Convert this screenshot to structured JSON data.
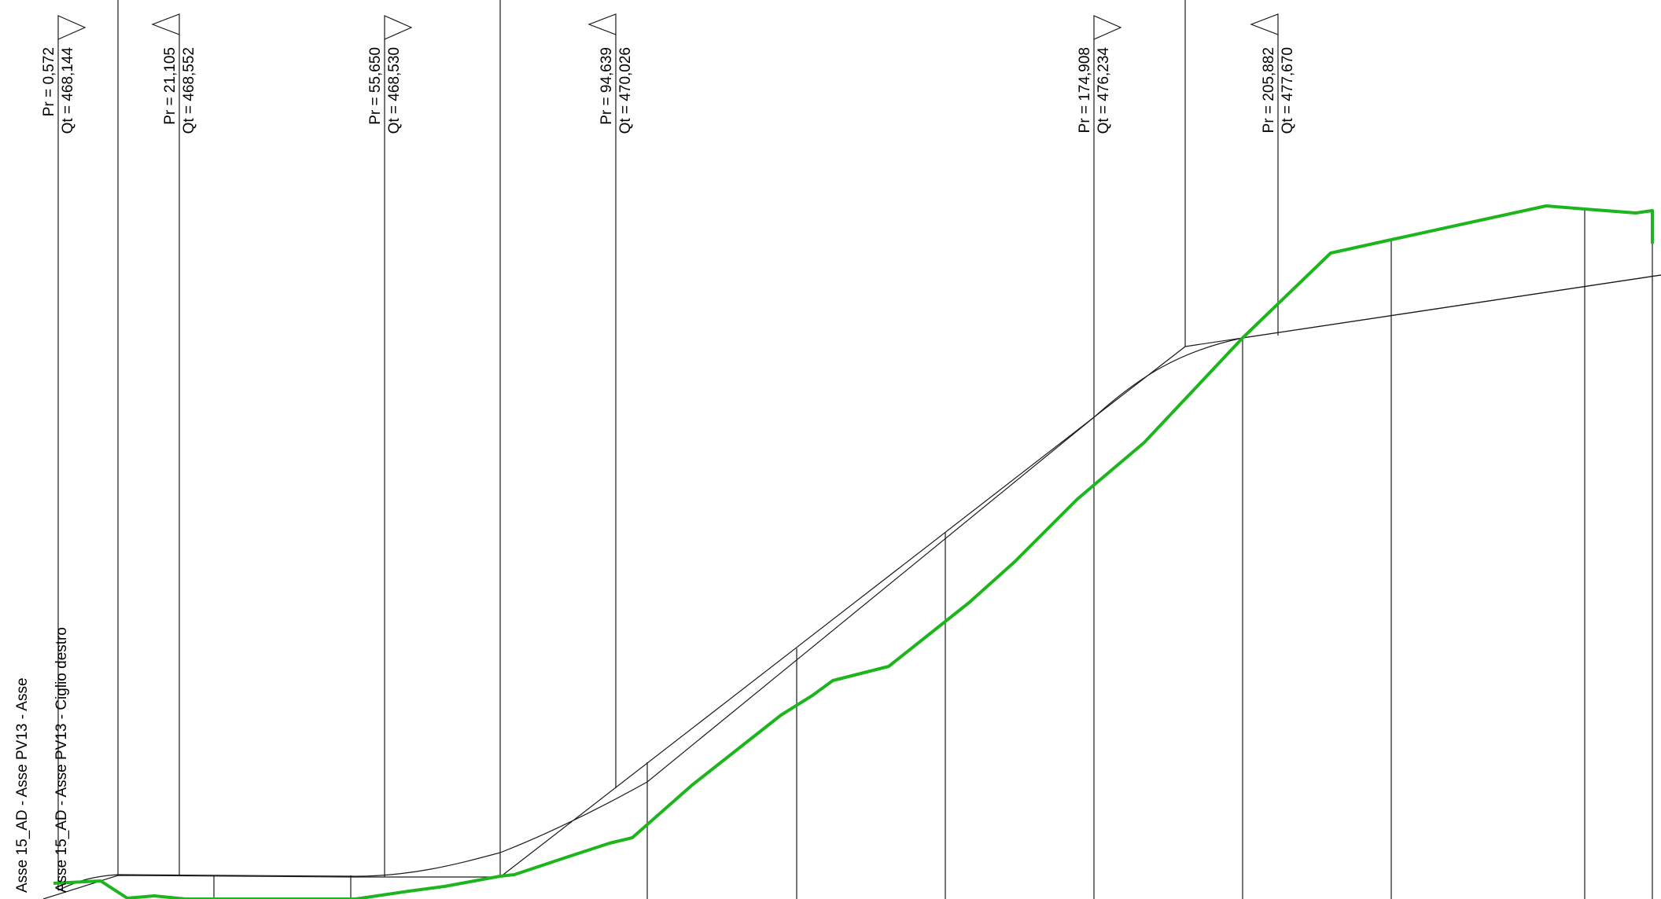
{
  "legend": {
    "asse": "Asse 15_AD - Asse PV13 - Asse",
    "ciglio": "Asse 15_AD - Asse PV13 - Ciglio destro"
  },
  "markers": [
    {
      "pr": "Pr = 0,572",
      "qt": "Qt = 468,144",
      "dir": "right"
    },
    {
      "pr": "Pr = 21,105",
      "qt": "Qt = 468,552",
      "dir": "left"
    },
    {
      "pr": "Pr = 55,650",
      "qt": "Qt = 468,530",
      "dir": "right"
    },
    {
      "pr": "Pr = 94,639",
      "qt": "Qt = 470,026",
      "dir": "left"
    },
    {
      "pr": "Pr = 174,908",
      "qt": "Qt = 476,234",
      "dir": "right"
    },
    {
      "pr": "Pr = 205,882",
      "qt": "Qt = 477,670",
      "dir": "left"
    }
  ],
  "colors": {
    "terrain": "#1db51d",
    "lines": "#1a1a1a",
    "background": "#ffffff"
  }
}
